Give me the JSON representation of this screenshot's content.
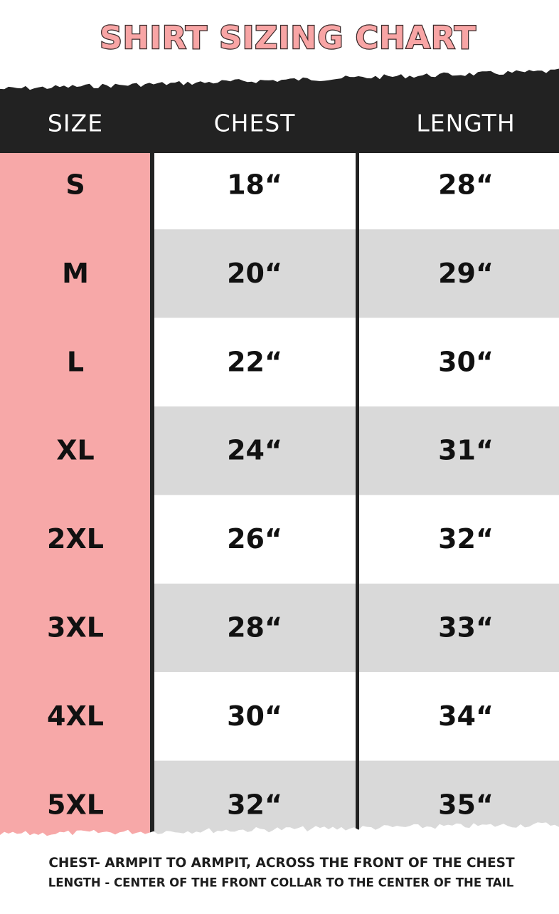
{
  "header": {
    "title": "SHIRT SIZING CHART"
  },
  "table": {
    "columns": [
      "SIZE",
      "CHEST",
      "LENGTH"
    ],
    "rows": [
      [
        "S",
        "18“",
        "28“"
      ],
      [
        "M",
        "20“",
        "29“"
      ],
      [
        "L",
        "22“",
        "30“"
      ],
      [
        "XL",
        "24“",
        "31“"
      ],
      [
        "2XL",
        "26“",
        "32“"
      ],
      [
        "3XL",
        "28“",
        "33“"
      ],
      [
        "4XL",
        "30“",
        "34“"
      ],
      [
        "5XL",
        "32“",
        "35“"
      ]
    ]
  },
  "footer": {
    "notes": [
      "CHEST- ARMPIT TO ARMPIT, ACROSS THE FRONT OF THE CHEST",
      "LENGTH - CENTER OF THE FRONT COLLAR TO THE CENTER OF THE TAIL"
    ]
  }
}
